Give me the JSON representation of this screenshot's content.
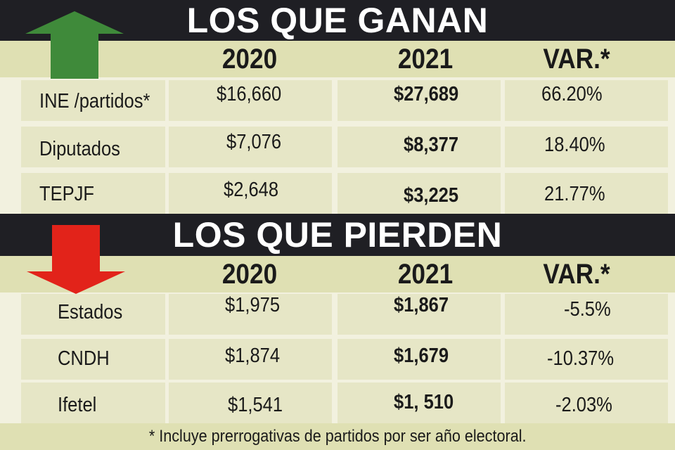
{
  "sections": {
    "gain": {
      "title": "LOS QUE GANAN",
      "headers": {
        "y2020": "2020",
        "y2021": "2021",
        "var": "VAR.*"
      },
      "rows": [
        {
          "label": "INE /partidos*",
          "y2020": "$16,660",
          "y2021": "$27,689",
          "var": "66.20%"
        },
        {
          "label": "Diputados",
          "y2020": "$7,076",
          "y2021": "$8,377",
          "var": "18.40%"
        },
        {
          "label": "TEPJF",
          "y2020": "$2,648",
          "y2021": "$3,225",
          "var": "21.77%"
        }
      ],
      "arrow": {
        "icon": "up-arrow-icon",
        "color": "#3f8a3a"
      }
    },
    "lose": {
      "title": "LOS QUE PIERDEN",
      "headers": {
        "y2020": "2020",
        "y2021": "2021",
        "var": "VAR.*"
      },
      "rows": [
        {
          "label": "Estados",
          "y2020": "$1,975",
          "y2021": "$1,867",
          "var": "-5.5%"
        },
        {
          "label": "CNDH",
          "y2020": "$1,874",
          "y2021": "$1,679",
          "var": "-10.37%"
        },
        {
          "label": "Ifetel",
          "y2020": "$1,541",
          "y2021": "$1, 510",
          "var": "-2.03%"
        }
      ],
      "arrow": {
        "icon": "down-arrow-icon",
        "color": "#e2231a"
      }
    }
  },
  "footnote": "* Incluye prerrogativas de partidos por ser año electoral.",
  "colors": {
    "banner": "#1f1f24",
    "header_band": "#dfe0b3",
    "cell": "#e6e6c6",
    "background": "#f2f1df"
  }
}
